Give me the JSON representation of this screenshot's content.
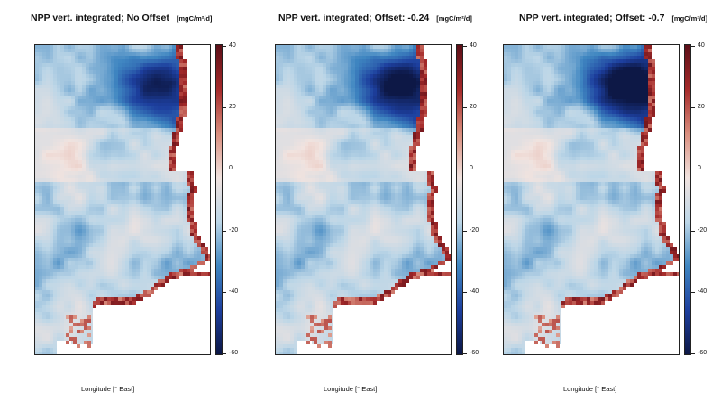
{
  "chart_data": [
    {
      "type": "heatmap",
      "title": "NPP vert. integrated; No Offset",
      "unit": "[mgC/m²/d]",
      "xlabel": "Longitude [° East]",
      "ylabel": "",
      "colorbar": {
        "ticks": [
          "40",
          "20",
          "0",
          "-20",
          "-40",
          "-60"
        ],
        "range": [
          -60,
          40
        ]
      }
    },
    {
      "type": "heatmap",
      "title": "NPP vert. integrated; Offset: -0.24",
      "unit": "[mgC/m²/d]",
      "xlabel": "Longitude [° East]",
      "ylabel": "",
      "colorbar": {
        "ticks": [
          "40",
          "20",
          "0",
          "-20",
          "-40",
          "-60"
        ],
        "range": [
          -60,
          40
        ]
      }
    },
    {
      "type": "heatmap",
      "title": "NPP vert. integrated; Offset: -0.7",
      "unit": "[mgC/m²/d]",
      "xlabel": "Longitude [° East]",
      "ylabel": "",
      "colorbar": {
        "ticks": [
          "40",
          "20",
          "0",
          "-20",
          "-40",
          "-60"
        ],
        "range": [
          -60,
          40
        ]
      }
    }
  ],
  "colors": {
    "scale": [
      "#5c0f18",
      "#a52a2a",
      "#d98d7d",
      "#f1e3df",
      "#bcd6e7",
      "#3f86c1",
      "#1d3f9e",
      "#0d1846"
    ],
    "land": "#ffffff"
  }
}
